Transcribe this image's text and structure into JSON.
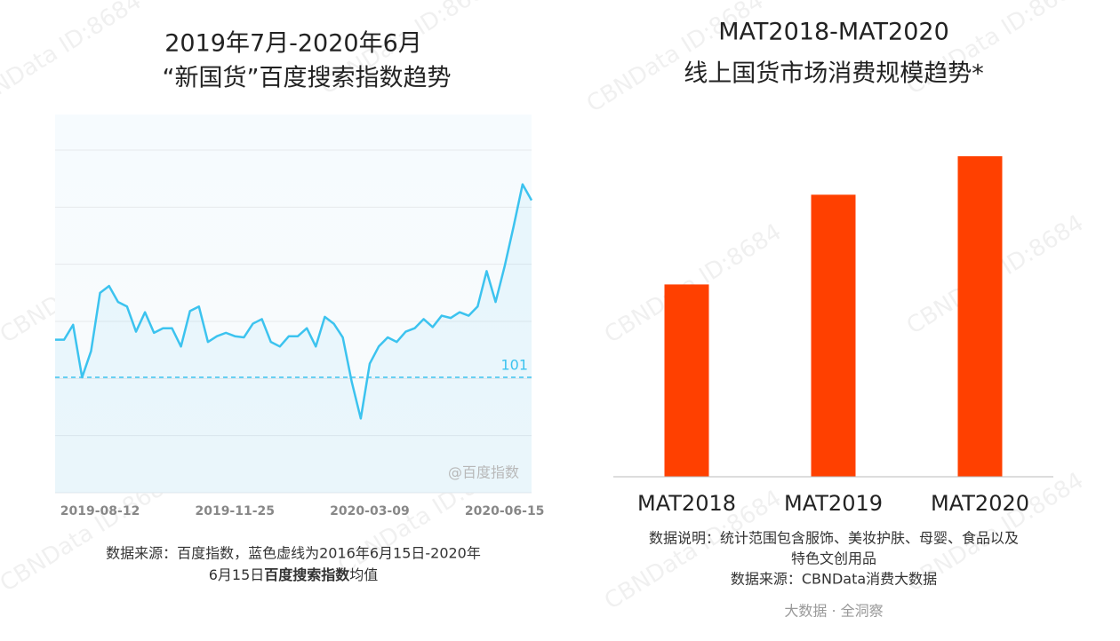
{
  "watermark": "CBNData ID:8684",
  "chart_data": [
    {
      "type": "line",
      "title": [
        "2019年7月-2020年6月",
        "“新国货”百度搜索指数趋势"
      ],
      "categories": [
        null,
        null,
        null,
        null,
        null,
        "2019-08-12",
        null,
        null,
        null,
        null,
        null,
        null,
        null,
        null,
        null,
        null,
        null,
        null,
        null,
        null,
        "2019-11-25",
        null,
        null,
        null,
        null,
        null,
        null,
        null,
        null,
        null,
        null,
        null,
        null,
        null,
        null,
        "2020-03-09",
        null,
        null,
        null,
        null,
        null,
        null,
        null,
        null,
        null,
        null,
        null,
        null,
        null,
        null,
        "2020-06-15",
        null,
        null,
        null
      ],
      "values": [
        134,
        134,
        147,
        101,
        124,
        175,
        181,
        167,
        163,
        141,
        158,
        140,
        144,
        144,
        128,
        159,
        163,
        132,
        137,
        140,
        137,
        136,
        148,
        152,
        132,
        128,
        137,
        137,
        144,
        128,
        154,
        148,
        136,
        97,
        65,
        113,
        128,
        136,
        132,
        141,
        144,
        152,
        145,
        155,
        153,
        158,
        155,
        163,
        194,
        167,
        198,
        233,
        270,
        256
      ],
      "color": "#3cc3ef",
      "ylim": [
        0,
        300
      ],
      "grid": true,
      "reference": 101,
      "source_tag": "@百度指数",
      "note": [
        "数据来源：百度指数，蓝色虚线为2016年6月15日-2020年",
        "6月15日",
        "百度搜索指数",
        "均值"
      ]
    },
    {
      "type": "bar",
      "title": [
        "MAT2018-MAT2020",
        "线上国货市场消费规模趋势*"
      ],
      "categories": [
        "MAT2018",
        "MAT2019",
        "MAT2020"
      ],
      "values": [
        60,
        88,
        100
      ],
      "color": "#ff4000",
      "ylim": [
        0,
        100
      ],
      "note": [
        "数据说明：统计范围包含服饰、美妆护肤、母婴、食品以及",
        "特色文创用品",
        "数据来源：CBNData消费大数据"
      ],
      "footer": "大数据 · 全洞察"
    }
  ]
}
